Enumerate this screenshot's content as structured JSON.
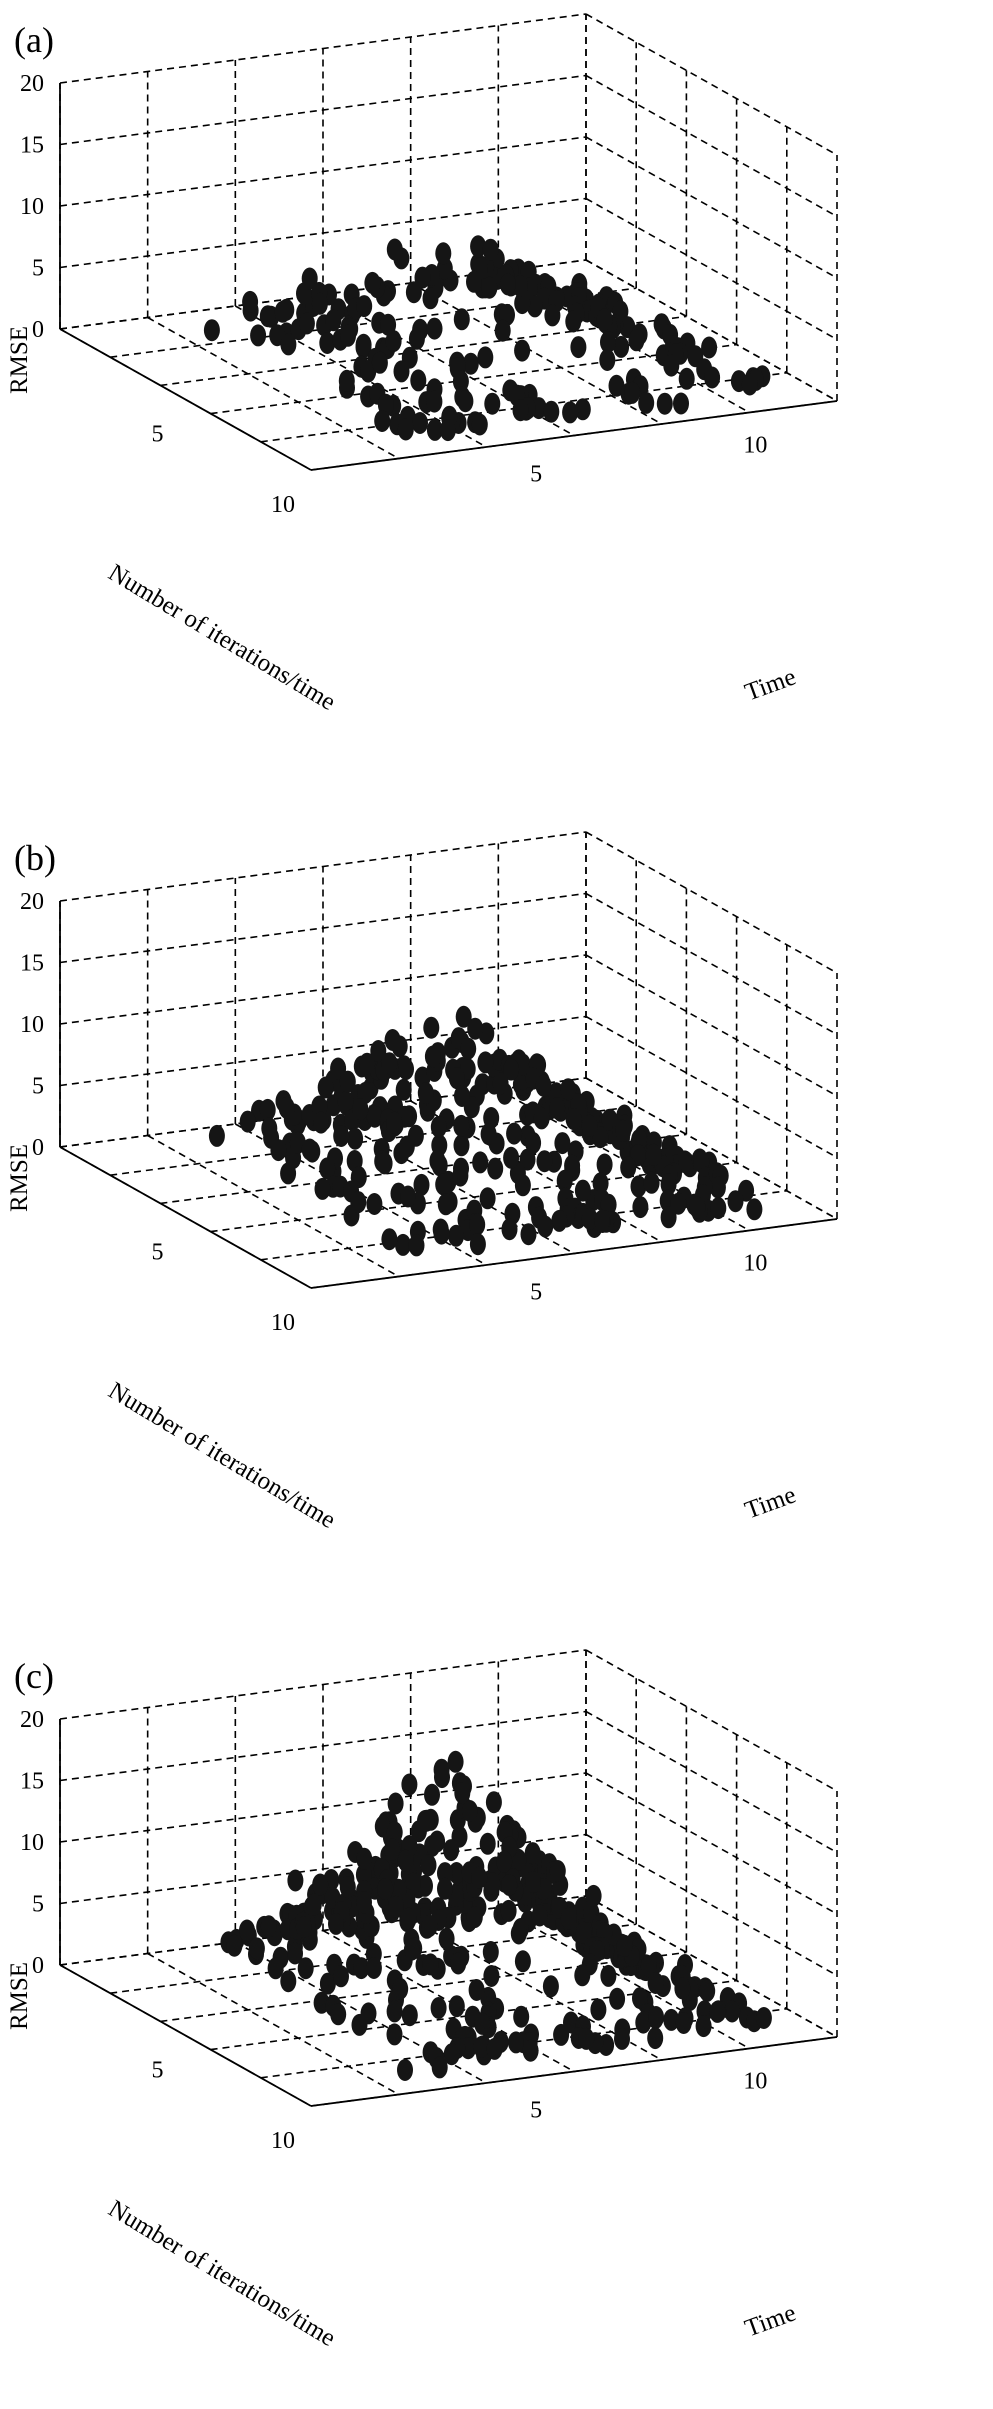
{
  "chart_data": [
    {
      "type": "scatter",
      "panel": "(a)",
      "zlabel": "RMSE",
      "xlabel": "Number of iterations/time",
      "ylabel": "Time",
      "x_ticks": [
        "5",
        "10"
      ],
      "y_ticks": [
        "5",
        "10"
      ],
      "z_ticks": [
        "0",
        "5",
        "10",
        "15",
        "20"
      ],
      "xlim": [
        0,
        10
      ],
      "ylim": [
        0,
        12
      ],
      "zlim": [
        0,
        20
      ],
      "grid": true,
      "peak_x": 5,
      "peak_y": 6,
      "peak_rmse": 10,
      "point_count": 200,
      "marker_color": "#151515"
    },
    {
      "type": "scatter",
      "panel": "(b)",
      "zlabel": "RMSE",
      "xlabel": "Number of iterations/time",
      "ylabel": "Time",
      "x_ticks": [
        "5",
        "10"
      ],
      "y_ticks": [
        "5",
        "10"
      ],
      "z_ticks": [
        "0",
        "5",
        "10",
        "15",
        "20"
      ],
      "xlim": [
        0,
        10
      ],
      "ylim": [
        0,
        12
      ],
      "zlim": [
        0,
        20
      ],
      "grid": true,
      "peak_x": 5,
      "peak_y": 6,
      "peak_rmse": 15,
      "point_count": 310,
      "marker_color": "#151515"
    },
    {
      "type": "scatter",
      "panel": "(c)",
      "zlabel": "RMSE",
      "xlabel": "Number of iterations/time",
      "ylabel": "Time",
      "x_ticks": [
        "5",
        "10"
      ],
      "y_ticks": [
        "5",
        "10"
      ],
      "z_ticks": [
        "0",
        "5",
        "10",
        "15",
        "20"
      ],
      "xlim": [
        0,
        10
      ],
      "ylim": [
        0,
        12
      ],
      "zlim": [
        0,
        20
      ],
      "grid": true,
      "peak_x": 5,
      "peak_y": 6,
      "peak_rmse": 20,
      "point_count": 400,
      "marker_color": "#151515"
    }
  ]
}
